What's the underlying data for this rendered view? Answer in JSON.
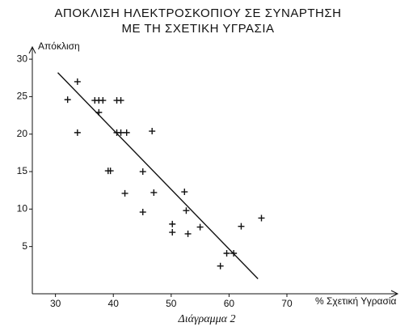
{
  "chart_data": {
    "type": "scatter",
    "title": [
      "ΑΠΟΚΛΙΣΗ ΗΛΕΚΤΡΟΣΚΟΠΙΟΥ ΣΕ ΣΥΝΑΡΤΗΣΗ",
      "ΜΕ ΤΗ ΣΧΕΤΙΚΗ ΥΓΡΑΣΙΑ"
    ],
    "y_label": "Απόκλιση",
    "x_label": "% Σχετική Υγρασία",
    "caption": "Διάγραμμα 2",
    "x": [
      32.1,
      33.8,
      33.8,
      36.8,
      37.5,
      38.2,
      37.5,
      40.6,
      41.3,
      40.6,
      41.3,
      42.3,
      39.1,
      39.5,
      45.1,
      42.0,
      45.1,
      46.7,
      47.0,
      50.2,
      50.2,
      52.3,
      52.6,
      52.9,
      55.0,
      58.5,
      59.6,
      60.8,
      62.1,
      65.6
    ],
    "y": [
      24.6,
      27.0,
      20.2,
      24.5,
      24.5,
      24.5,
      22.9,
      24.5,
      24.5,
      20.2,
      20.2,
      20.2,
      15.1,
      15.1,
      15.0,
      12.1,
      9.6,
      20.4,
      12.2,
      8.0,
      6.9,
      12.3,
      9.8,
      6.7,
      7.6,
      2.4,
      4.1,
      4.1,
      7.7,
      8.8
    ],
    "color": "#111111",
    "trend_line": {
      "x": [
        30.4,
        65.0
      ],
      "y": [
        28.2,
        0.7
      ]
    },
    "xlim": [
      26,
      89
    ],
    "ylim": [
      -1.3,
      31.2
    ],
    "xticks": [
      30,
      40,
      50,
      60,
      70
    ],
    "yticks": [
      5,
      10,
      15,
      20,
      25,
      30
    ]
  }
}
